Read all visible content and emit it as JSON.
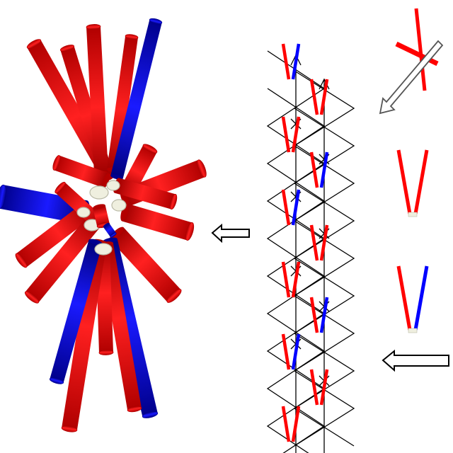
{
  "colors": {
    "red": "#ff0000",
    "red_dark": "#b30000",
    "blue": "#0000ff",
    "blue_dark": "#00008f",
    "core": "#efefdf",
    "core_dark": "#b9b9a6",
    "lines": "#000000",
    "arrow_fill": "#ffffff",
    "arrow_stroke": "#000000"
  },
  "panels": [
    {
      "name": "assembled-cluster",
      "description_visible": false
    },
    {
      "name": "zigzag-lattice",
      "description_visible": false
    },
    {
      "name": "building-blocks",
      "description_visible": false
    }
  ],
  "units": [
    {
      "name": "crossed-rod-unit",
      "rods": [
        "red",
        "red"
      ]
    },
    {
      "name": "red-red-v-unit",
      "rods": [
        "red",
        "red"
      ]
    },
    {
      "name": "red-blue-v-unit",
      "rods": [
        "red",
        "blue"
      ]
    }
  ],
  "arrows": [
    {
      "name": "diagonal-arrow",
      "direction": "down-left"
    },
    {
      "name": "left-arrow-upper",
      "direction": "left"
    },
    {
      "name": "left-arrow-lower",
      "direction": "left"
    }
  ]
}
